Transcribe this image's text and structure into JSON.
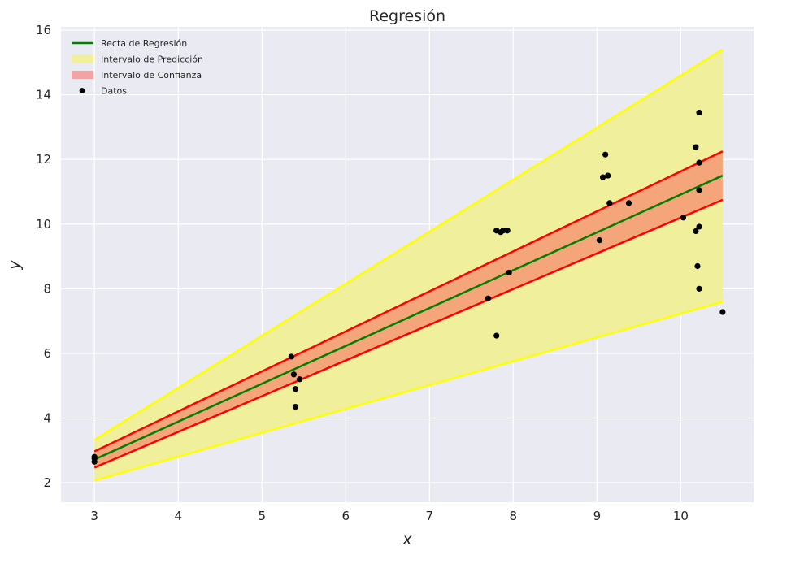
{
  "chart_data": {
    "type": "line",
    "title": "Regresión",
    "xlabel": "x",
    "ylabel": "y",
    "xlim": [
      2.6,
      10.87
    ],
    "ylim": [
      1.4,
      16.1
    ],
    "xticks": [
      3,
      4,
      5,
      6,
      7,
      8,
      9,
      10
    ],
    "yticks": [
      2,
      4,
      6,
      8,
      10,
      12,
      14,
      16
    ],
    "grid": true,
    "legend_position": "top-left",
    "colors": {
      "background": "#EAEAF2",
      "grid": "#ffffff",
      "regression": "#008000",
      "confidence": "#ff0000",
      "confidence_fill": "#f4a57a",
      "prediction": "#ffff00",
      "prediction_fill": "#f0ef9c",
      "points": "#000000"
    },
    "legend": [
      {
        "label": "Recta de Regresión",
        "kind": "line",
        "color": "#008000"
      },
      {
        "label": "Intervalo de Predicción",
        "kind": "patch",
        "color": "#f0ef9c"
      },
      {
        "label": "Intervalo de Confianza",
        "kind": "patch",
        "color": "#f2a3a3"
      },
      {
        "label": "Datos",
        "kind": "point",
        "color": "#000000"
      }
    ],
    "regression_line": {
      "x": [
        3.0,
        10.5
      ],
      "y": [
        2.72,
        11.5
      ]
    },
    "confidence_upper": {
      "x": [
        3.0,
        10.5
      ],
      "y": [
        2.97,
        12.25
      ]
    },
    "confidence_lower": {
      "x": [
        3.0,
        10.5
      ],
      "y": [
        2.47,
        10.75
      ]
    },
    "prediction_upper": {
      "x": [
        3.0,
        10.5
      ],
      "y": [
        3.33,
        15.4
      ]
    },
    "prediction_lower": {
      "x": [
        3.0,
        10.5
      ],
      "y": [
        2.07,
        7.6
      ]
    },
    "points": [
      [
        3.0,
        2.8
      ],
      [
        3.0,
        2.75
      ],
      [
        3.0,
        2.65
      ],
      [
        5.35,
        5.9
      ],
      [
        5.38,
        5.35
      ],
      [
        5.4,
        4.9
      ],
      [
        5.4,
        4.35
      ],
      [
        5.45,
        5.2
      ],
      [
        7.7,
        7.7
      ],
      [
        7.8,
        6.55
      ],
      [
        7.8,
        9.8
      ],
      [
        7.85,
        9.75
      ],
      [
        7.88,
        9.8
      ],
      [
        7.93,
        9.8
      ],
      [
        7.95,
        8.5
      ],
      [
        9.03,
        9.5
      ],
      [
        9.07,
        11.45
      ],
      [
        9.1,
        12.15
      ],
      [
        9.13,
        11.5
      ],
      [
        9.15,
        10.65
      ],
      [
        9.38,
        10.65
      ],
      [
        10.03,
        10.2
      ],
      [
        10.18,
        12.38
      ],
      [
        10.18,
        9.78
      ],
      [
        10.2,
        8.7
      ],
      [
        10.22,
        13.45
      ],
      [
        10.22,
        11.9
      ],
      [
        10.22,
        11.05
      ],
      [
        10.22,
        9.92
      ],
      [
        10.22,
        8.0
      ],
      [
        10.5,
        7.28
      ]
    ]
  }
}
